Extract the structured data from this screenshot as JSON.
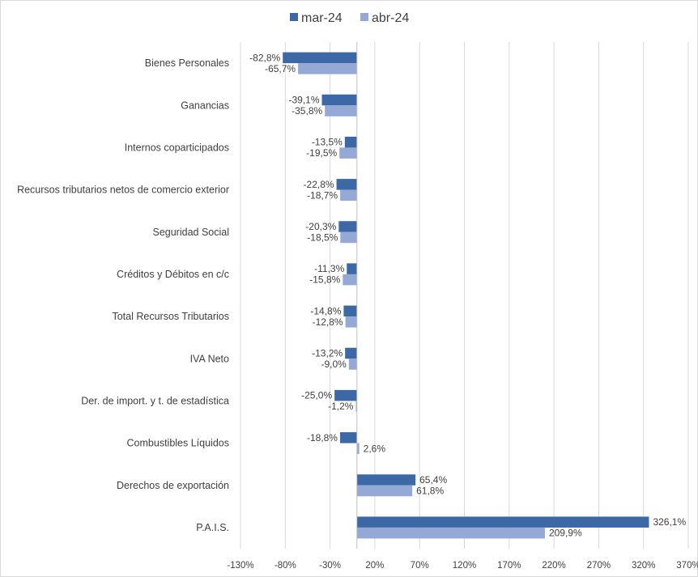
{
  "chart_data": {
    "type": "bar",
    "orientation": "horizontal",
    "categories": [
      "Bienes Personales",
      "Ganancias",
      "Internos coparticipados",
      "Recursos tributarios netos de comercio exterior",
      "Seguridad Social",
      "Créditos y Débitos en c/c",
      "Total Recursos Tributarios",
      "IVA Neto",
      "Der. de import. y t. de estadística",
      "Combustibles Líquidos",
      "Derechos de exportación",
      "P.A.I.S."
    ],
    "series": [
      {
        "name": "mar-24",
        "color": "#3d68a6",
        "values": [
          -82.8,
          -39.1,
          -13.5,
          -22.8,
          -20.3,
          -11.3,
          -14.8,
          -13.2,
          -25.0,
          -18.8,
          65.4,
          326.1
        ],
        "labels": [
          "-82,8%",
          "-39,1%",
          "-13,5%",
          "-22,8%",
          "-20,3%",
          "-11,3%",
          "-14,8%",
          "-13,2%",
          "-25,0%",
          "-18,8%",
          "65,4%",
          "326,1%"
        ]
      },
      {
        "name": "abr-24",
        "color": "#94a9d6",
        "values": [
          -65.7,
          -35.8,
          -19.5,
          -18.7,
          -18.5,
          -15.8,
          -12.8,
          -9.0,
          -1.2,
          2.6,
          61.8,
          209.9
        ],
        "labels": [
          "-65,7%",
          "-35,8%",
          "-19,5%",
          "-18,7%",
          "-18,5%",
          "-15,8%",
          "-12,8%",
          "-9,0%",
          "-1,2%",
          "2,6%",
          "61,8%",
          "209,9%"
        ]
      }
    ],
    "xlim": [
      -130,
      370
    ],
    "x_ticks": [
      -130,
      -80,
      -30,
      20,
      70,
      120,
      170,
      220,
      270,
      320,
      370
    ],
    "x_tick_labels": [
      "-130%",
      "-80%",
      "-30%",
      "20%",
      "70%",
      "120%",
      "170%",
      "220%",
      "270%",
      "320%",
      "370%"
    ],
    "grid": "vertical",
    "legend": "top-center"
  }
}
